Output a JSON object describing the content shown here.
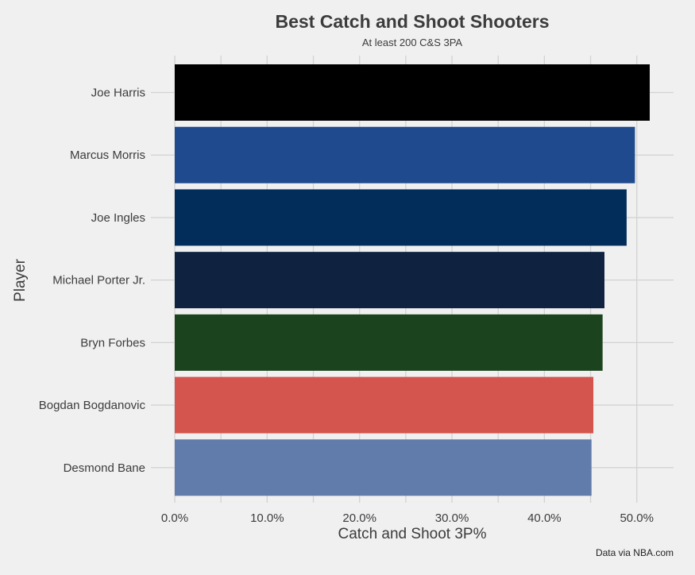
{
  "chart_data": {
    "type": "bar",
    "orientation": "horizontal",
    "title": "Best Catch and Shoot Shooters",
    "subtitle": "At least 200 C&S 3PA",
    "xlabel": "Catch and Shoot 3P%",
    "ylabel": "Player",
    "caption": "Data via NBA.com",
    "xlim": [
      0,
      0.54
    ],
    "xticks": [
      0,
      0.1,
      0.2,
      0.3,
      0.4,
      0.5
    ],
    "xtick_labels": [
      "0.0%",
      "10.0%",
      "20.0%",
      "30.0%",
      "40.0%",
      "50.0%"
    ],
    "grid": true,
    "legend": "none",
    "categories": [
      "Joe Harris",
      "Marcus Morris",
      "Joe Ingles",
      "Michael Porter Jr.",
      "Bryn Forbes",
      "Bogdan Bogdanovic",
      "Desmond Bane"
    ],
    "values": [
      0.514,
      0.498,
      0.489,
      0.465,
      0.463,
      0.453,
      0.451
    ],
    "colors": [
      "#000000",
      "#1f4a8e",
      "#022c5a",
      "#0f2341",
      "#1b441e",
      "#d3554e",
      "#617bab"
    ]
  }
}
